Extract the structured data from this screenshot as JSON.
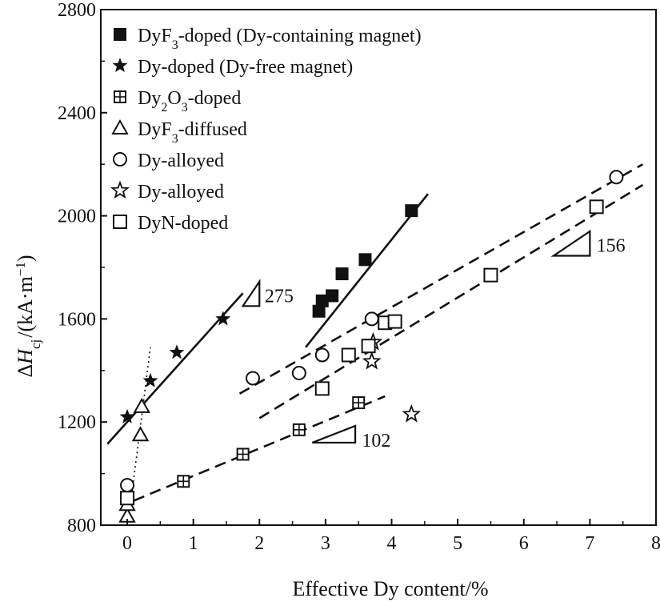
{
  "chart_data": {
    "type": "scatter",
    "xlabel": "Effective Dy content/%",
    "ylabel": "ΔHcj/(kA·m⁻¹)",
    "ylabel_parts": {
      "delta": "Δ",
      "var": "H",
      "sub": "cj",
      "unit_open": "/(kA·m",
      "sup": "−1",
      "unit_close": ")"
    },
    "xlim": [
      -0.4,
      8
    ],
    "ylim": [
      800,
      2800
    ],
    "xticks": [
      0,
      1,
      2,
      3,
      4,
      5,
      6,
      7,
      8
    ],
    "yticks": [
      800,
      1200,
      1600,
      2000,
      2400,
      2800
    ],
    "grid": false,
    "legend_position": "top-left",
    "series": [
      {
        "name": "DyF3-doped (Dy-containing magnet)",
        "label_parts": {
          "pre": "DyF",
          "sub": "3",
          "post": "-doped (Dy-containing magnet)"
        },
        "marker": "filled-square",
        "x": [
          2.9,
          2.95,
          3.1,
          3.25,
          3.6,
          4.3
        ],
        "y": [
          1630,
          1670,
          1690,
          1775,
          1830,
          2020
        ]
      },
      {
        "name": "Dy-doped (Dy-free magnet)",
        "label_parts": {
          "pre": "Dy-doped (Dy-free magnet)",
          "sub": "",
          "post": ""
        },
        "marker": "filled-star",
        "x": [
          0.0,
          0.35,
          0.75,
          1.45
        ],
        "y": [
          1220,
          1360,
          1470,
          1600
        ]
      },
      {
        "name": "Dy2O3-doped",
        "label_parts": {
          "pre": "Dy",
          "sub": "2",
          "post": "O",
          "sub2": "3",
          "post2": "-doped"
        },
        "marker": "crossed-square",
        "x": [
          0.85,
          1.75,
          2.6,
          3.5
        ],
        "y": [
          970,
          1075,
          1170,
          1275
        ]
      },
      {
        "name": "DyF3-diffused",
        "label_parts": {
          "pre": "DyF",
          "sub": "3",
          "post": "-diffused"
        },
        "marker": "open-triangle",
        "x": [
          0.0,
          0.0,
          0.2,
          0.22
        ],
        "y": [
          835,
          880,
          1150,
          1260
        ]
      },
      {
        "name": "Dy-alloyed",
        "label_parts": {
          "pre": "Dy-alloyed",
          "sub": "",
          "post": ""
        },
        "marker": "open-circle",
        "x": [
          0.0,
          1.9,
          2.6,
          2.95,
          3.7,
          7.4
        ],
        "y": [
          955,
          1370,
          1390,
          1460,
          1600,
          2150
        ]
      },
      {
        "name": "Dy-alloyed",
        "label_parts": {
          "pre": "Dy-alloyed",
          "sub": "",
          "post": ""
        },
        "marker": "open-star",
        "x": [
          3.7,
          3.72,
          4.3
        ],
        "y": [
          1435,
          1510,
          1230
        ]
      },
      {
        "name": "DyN-doped",
        "label_parts": {
          "pre": "DyN-doped",
          "sub": "",
          "post": ""
        },
        "marker": "open-square",
        "x": [
          0.0,
          2.95,
          3.35,
          3.65,
          3.9,
          4.05,
          5.5,
          7.1
        ],
        "y": [
          905,
          1330,
          1460,
          1495,
          1585,
          1590,
          1770,
          2035
        ]
      }
    ],
    "fit_lines": [
      {
        "style": "solid",
        "x": [
          -0.3,
          1.75
        ],
        "y": [
          1115,
          1700
        ]
      },
      {
        "style": "solid",
        "x": [
          2.7,
          4.55
        ],
        "y": [
          1490,
          2085
        ]
      },
      {
        "style": "dashed",
        "x": [
          1.7,
          7.8
        ],
        "y": [
          1310,
          2200
        ]
      },
      {
        "style": "dashed",
        "x": [
          2.0,
          7.8
        ],
        "y": [
          1215,
          2120
        ]
      },
      {
        "style": "dashed",
        "x": [
          0.1,
          3.9
        ],
        "y": [
          895,
          1300
        ]
      },
      {
        "style": "dotted",
        "x": [
          0.02,
          0.35
        ],
        "y": [
          820,
          1490
        ]
      }
    ],
    "slope_annotations": [
      {
        "label": "275",
        "tri_x": [
          1.75,
          2.0,
          2.0
        ],
        "tri_y": [
          1650,
          1650,
          1745
        ],
        "text_x": 2.08,
        "text_y": 1665
      },
      {
        "label": "156",
        "tri_x": [
          6.45,
          7.0,
          7.0
        ],
        "tri_y": [
          1845,
          1845,
          1940
        ],
        "text_x": 7.1,
        "text_y": 1860
      },
      {
        "label": "102",
        "tri_x": [
          2.8,
          3.45,
          3.45
        ],
        "tri_y": [
          1120,
          1120,
          1185
        ],
        "text_x": 3.55,
        "text_y": 1105
      }
    ]
  }
}
